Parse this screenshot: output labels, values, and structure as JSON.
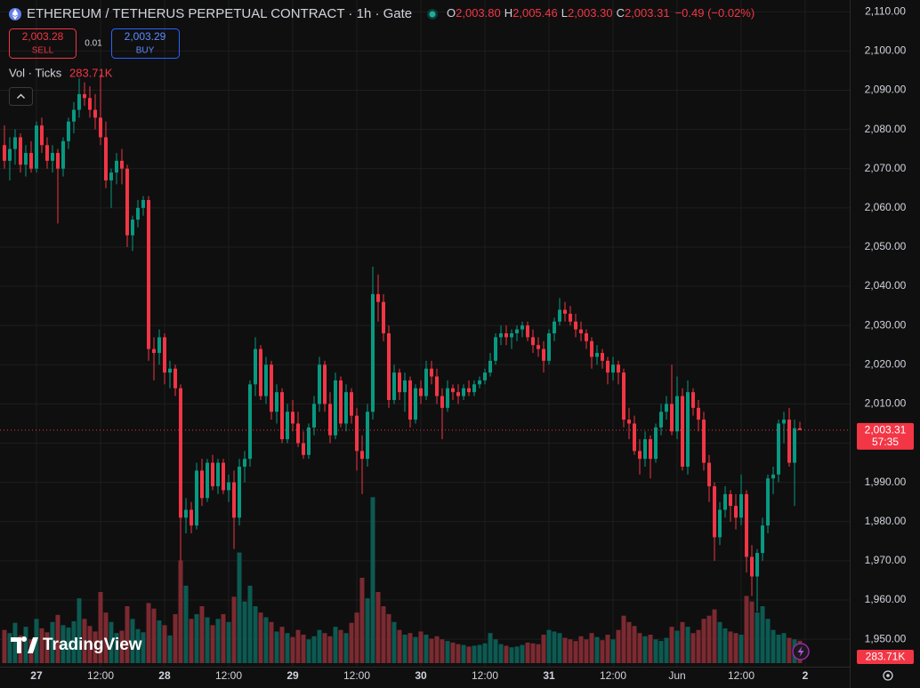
{
  "chart_data": {
    "type": "candlestick",
    "title": "ETHEREUM / TETHERUS PERPETUAL CONTRACT · 1h · Gate",
    "header_ohlc_keys": [
      "O",
      "H",
      "L",
      "C"
    ],
    "header_ohlc_values": [
      "2,003.80",
      "2,005.46",
      "2,003.30",
      "2,003.31"
    ],
    "header_change": "−0.49 (−0.02%)",
    "sell_price": "2,003.28",
    "sell_label": "SELL",
    "spread": "0.01",
    "buy_price": "2,003.29",
    "buy_label": "BUY",
    "volume_title": "Vol · Ticks",
    "volume_last_label": "283.71K",
    "last_price_label": "2,003.31",
    "countdown": "57:35",
    "logo": "TradingView",
    "up_color": "#089981",
    "down_color": "#f23645",
    "up_volume_color": "#0c5a52",
    "down_volume_color": "#7c2a31",
    "grid": true,
    "xlim": [
      -0.83,
      158.33
    ],
    "xticks": [
      {
        "value": 6,
        "label": "27"
      },
      {
        "value": 18,
        "label": "12:00"
      },
      {
        "value": 30,
        "label": "28"
      },
      {
        "value": 42,
        "label": "12:00"
      },
      {
        "value": 54,
        "label": "29"
      },
      {
        "value": 66,
        "label": "12:00"
      },
      {
        "value": 78,
        "label": "30"
      },
      {
        "value": 90,
        "label": "12:00"
      },
      {
        "value": 102,
        "label": "31"
      },
      {
        "value": 114,
        "label": "12:00"
      },
      {
        "value": 126,
        "label": "Jun"
      },
      {
        "value": 138,
        "label": "12:00"
      },
      {
        "value": 150,
        "label": "2"
      }
    ],
    "ylim": [
      1943,
      2113
    ],
    "yticks": [
      {
        "value": 1950,
        "label": "1,950.00"
      },
      {
        "value": 1960,
        "label": "1,960.00"
      },
      {
        "value": 1970,
        "label": "1,970.00"
      },
      {
        "value": 1980,
        "label": "1,980.00"
      },
      {
        "value": 1990,
        "label": "1,990.00"
      },
      {
        "value": 2000,
        "label": "2,000.00"
      },
      {
        "value": 2010,
        "label": "2,010.00"
      },
      {
        "value": 2020,
        "label": "2,020.00"
      },
      {
        "value": 2030,
        "label": "2,030.00"
      },
      {
        "value": 2040,
        "label": "2,040.00"
      },
      {
        "value": 2050,
        "label": "2,050.00"
      },
      {
        "value": 2060,
        "label": "2,060.00"
      },
      {
        "value": 2070,
        "label": "2,070.00"
      },
      {
        "value": 2080,
        "label": "2,080.00"
      },
      {
        "value": 2090,
        "label": "2,090.00"
      },
      {
        "value": 2100,
        "label": "2,100.00"
      },
      {
        "value": 2110,
        "label": "2,110.00"
      }
    ],
    "volume_lim": [
      0,
      2700
    ],
    "x": [
      0,
      1,
      2,
      3,
      4,
      5,
      6,
      7,
      8,
      9,
      10,
      11,
      12,
      13,
      14,
      15,
      16,
      17,
      18,
      19,
      20,
      21,
      22,
      23,
      24,
      25,
      26,
      27,
      28,
      29,
      30,
      31,
      32,
      33,
      34,
      35,
      36,
      37,
      38,
      39,
      40,
      41,
      42,
      43,
      44,
      45,
      46,
      47,
      48,
      49,
      50,
      51,
      52,
      53,
      54,
      55,
      56,
      57,
      58,
      59,
      60,
      61,
      62,
      63,
      64,
      65,
      66,
      67,
      68,
      69,
      70,
      71,
      72,
      73,
      74,
      75,
      76,
      77,
      78,
      79,
      80,
      81,
      82,
      83,
      84,
      85,
      86,
      87,
      88,
      89,
      90,
      91,
      92,
      93,
      94,
      95,
      96,
      97,
      98,
      99,
      100,
      101,
      102,
      103,
      104,
      105,
      106,
      107,
      108,
      109,
      110,
      111,
      112,
      113,
      114,
      115,
      116,
      117,
      118,
      119,
      120,
      121,
      122,
      123,
      124,
      125,
      126,
      127,
      128,
      129,
      130,
      131,
      132,
      133,
      134,
      135,
      136,
      137,
      138,
      139,
      140,
      141,
      142,
      143,
      144,
      145,
      146,
      147,
      148,
      149
    ],
    "ohlc": [
      [
        2076,
        2081,
        2070,
        2072
      ],
      [
        2072,
        2078,
        2067,
        2075
      ],
      [
        2075,
        2080,
        2071,
        2078
      ],
      [
        2078,
        2079,
        2069,
        2071
      ],
      [
        2071,
        2076,
        2068,
        2074
      ],
      [
        2074,
        2077,
        2069,
        2070
      ],
      [
        2070,
        2082,
        2069,
        2081
      ],
      [
        2081,
        2083,
        2074,
        2076
      ],
      [
        2076,
        2078,
        2070,
        2072
      ],
      [
        2072,
        2076,
        2069,
        2074
      ],
      [
        2074,
        2075,
        2056,
        2070
      ],
      [
        2070,
        2078,
        2068,
        2077
      ],
      [
        2077,
        2083,
        2075,
        2082
      ],
      [
        2082,
        2087,
        2079,
        2085
      ],
      [
        2085,
        2093,
        2083,
        2089
      ],
      [
        2089,
        2092,
        2086,
        2088
      ],
      [
        2088,
        2091,
        2083,
        2085
      ],
      [
        2085,
        2089,
        2080,
        2083
      ],
      [
        2083,
        2094,
        2076,
        2078
      ],
      [
        2078,
        2082,
        2065,
        2067
      ],
      [
        2067,
        2070,
        2060,
        2069
      ],
      [
        2069,
        2074,
        2066,
        2072
      ],
      [
        2072,
        2075,
        2066,
        2070
      ],
      [
        2070,
        2071,
        2050,
        2053
      ],
      [
        2053,
        2058,
        2049,
        2057
      ],
      [
        2057,
        2062,
        2055,
        2060
      ],
      [
        2060,
        2063,
        2058,
        2062
      ],
      [
        2062,
        2063,
        2021,
        2024
      ],
      [
        2024,
        2027,
        2016,
        2023
      ],
      [
        2023,
        2029,
        2020,
        2027
      ],
      [
        2027,
        2028,
        2015,
        2018
      ],
      [
        2018,
        2021,
        2014,
        2019
      ],
      [
        2019,
        2020,
        2012,
        2014
      ],
      [
        2014,
        2015,
        1970,
        1981
      ],
      [
        1981,
        1986,
        1977,
        1983
      ],
      [
        1983,
        1985,
        1977,
        1979
      ],
      [
        1979,
        1995,
        1978,
        1993
      ],
      [
        1993,
        1996,
        1984,
        1986
      ],
      [
        1986,
        1996,
        1985,
        1995
      ],
      [
        1995,
        1997,
        1988,
        1989
      ],
      [
        1989,
        1996,
        1987,
        1995
      ],
      [
        1995,
        1996,
        1987,
        1988
      ],
      [
        1988,
        1992,
        1985,
        1990
      ],
      [
        1990,
        1993,
        1973,
        1981
      ],
      [
        1981,
        1996,
        1979,
        1994
      ],
      [
        1994,
        1998,
        1990,
        1996
      ],
      [
        1996,
        2016,
        1994,
        2015
      ],
      [
        2015,
        2027,
        2012,
        2024
      ],
      [
        2024,
        2025,
        2011,
        2012
      ],
      [
        2012,
        2022,
        2010,
        2020
      ],
      [
        2020,
        2021,
        2006,
        2008
      ],
      [
        2008,
        2015,
        2005,
        2013
      ],
      [
        2013,
        2014,
        2000,
        2001
      ],
      [
        2001,
        2010,
        2000,
        2008
      ],
      [
        2008,
        2011,
        2003,
        2005
      ],
      [
        2005,
        2008,
        1999,
        2000
      ],
      [
        2000,
        2003,
        1996,
        1997
      ],
      [
        1997,
        2005,
        1996,
        2004
      ],
      [
        2004,
        2012,
        2002,
        2010
      ],
      [
        2010,
        2022,
        2008,
        2020
      ],
      [
        2020,
        2021,
        2008,
        2010
      ],
      [
        2010,
        2013,
        2000,
        2002
      ],
      [
        2002,
        2018,
        2001,
        2016
      ],
      [
        2016,
        2017,
        2004,
        2005
      ],
      [
        2005,
        2015,
        2003,
        2013
      ],
      [
        2013,
        2014,
        2005,
        2007
      ],
      [
        2007,
        2009,
        1993,
        1998
      ],
      [
        1998,
        2002,
        1987,
        1996
      ],
      [
        1996,
        2010,
        1994,
        2008
      ],
      [
        2008,
        2045,
        2006,
        2038
      ],
      [
        2038,
        2043,
        2031,
        2036
      ],
      [
        2036,
        2038,
        2026,
        2028
      ],
      [
        2028,
        2030,
        2009,
        2011
      ],
      [
        2011,
        2020,
        2010,
        2018
      ],
      [
        2018,
        2019,
        2011,
        2013
      ],
      [
        2013,
        2018,
        2008,
        2016
      ],
      [
        2016,
        2017,
        2004,
        2006
      ],
      [
        2006,
        2015,
        2005,
        2014
      ],
      [
        2014,
        2016,
        2010,
        2012
      ],
      [
        2012,
        2021,
        2011,
        2019
      ],
      [
        2019,
        2021,
        2015,
        2017
      ],
      [
        2017,
        2019,
        2010,
        2012
      ],
      [
        2012,
        2014,
        2001,
        2009
      ],
      [
        2009,
        2016,
        2008,
        2014
      ],
      [
        2014,
        2015,
        2011,
        2013
      ],
      [
        2013,
        2015,
        2010,
        2012
      ],
      [
        2012,
        2015,
        2011,
        2014
      ],
      [
        2014,
        2016,
        2012,
        2013
      ],
      [
        2013,
        2016,
        2012,
        2015
      ],
      [
        2015,
        2017,
        2014,
        2016
      ],
      [
        2016,
        2019,
        2015,
        2018
      ],
      [
        2018,
        2023,
        2017,
        2021
      ],
      [
        2021,
        2028,
        2020,
        2027
      ],
      [
        2027,
        2030,
        2025,
        2028
      ],
      [
        2028,
        2030,
        2025,
        2027
      ],
      [
        2027,
        2029,
        2024,
        2028
      ],
      [
        2028,
        2030,
        2026,
        2029
      ],
      [
        2029,
        2031,
        2027,
        2030
      ],
      [
        2030,
        2031,
        2026,
        2027
      ],
      [
        2027,
        2029,
        2023,
        2025
      ],
      [
        2025,
        2027,
        2022,
        2024
      ],
      [
        2024,
        2026,
        2018,
        2021
      ],
      [
        2021,
        2029,
        2020,
        2028
      ],
      [
        2028,
        2032,
        2026,
        2031
      ],
      [
        2031,
        2037,
        2030,
        2034
      ],
      [
        2034,
        2036,
        2031,
        2033
      ],
      [
        2033,
        2035,
        2030,
        2031
      ],
      [
        2031,
        2033,
        2027,
        2029
      ],
      [
        2029,
        2031,
        2026,
        2028
      ],
      [
        2028,
        2029,
        2024,
        2026
      ],
      [
        2026,
        2027,
        2019,
        2022
      ],
      [
        2022,
        2025,
        2020,
        2023
      ],
      [
        2023,
        2024,
        2019,
        2021
      ],
      [
        2021,
        2022,
        2015,
        2018
      ],
      [
        2018,
        2022,
        2016,
        2020
      ],
      [
        2020,
        2021,
        2015,
        2018
      ],
      [
        2018,
        2019,
        2004,
        2006
      ],
      [
        2006,
        2009,
        2001,
        2005
      ],
      [
        2005,
        2007,
        1997,
        1998
      ],
      [
        1998,
        2001,
        1992,
        1996
      ],
      [
        1996,
        2003,
        1994,
        2001
      ],
      [
        2001,
        2002,
        1991,
        1996
      ],
      [
        1996,
        2005,
        1995,
        2004
      ],
      [
        2004,
        2010,
        2002,
        2008
      ],
      [
        2008,
        2012,
        2006,
        2010
      ],
      [
        2010,
        2020,
        2002,
        2003
      ],
      [
        2003,
        2017,
        2001,
        2012
      ],
      [
        2012,
        2014,
        1993,
        1994
      ],
      [
        1994,
        2016,
        1992,
        2013
      ],
      [
        2013,
        2014,
        2007,
        2009
      ],
      [
        2009,
        2011,
        2003,
        2006
      ],
      [
        2006,
        2008,
        1993,
        1995
      ],
      [
        1995,
        1997,
        1985,
        1989
      ],
      [
        1989,
        1990,
        1970,
        1976
      ],
      [
        1976,
        1985,
        1974,
        1983
      ],
      [
        1983,
        1989,
        1981,
        1987
      ],
      [
        1987,
        1988,
        1980,
        1984
      ],
      [
        1984,
        1987,
        1978,
        1981
      ],
      [
        1981,
        1992,
        1979,
        1987
      ],
      [
        1987,
        1988,
        1967,
        1971
      ],
      [
        1971,
        1974,
        1961,
        1966
      ],
      [
        1966,
        1973,
        1957,
        1972
      ],
      [
        1972,
        1981,
        1970,
        1979
      ],
      [
        1979,
        1992,
        1977,
        1991
      ],
      [
        1991,
        1994,
        1987,
        1992
      ],
      [
        1992,
        2006,
        1990,
        2005
      ],
      [
        2005,
        2008,
        2000,
        2006
      ],
      [
        2006,
        2009,
        1994,
        1995
      ],
      [
        1995,
        2006,
        1984,
        2003.8
      ],
      [
        2003.8,
        2005.46,
        2003.3,
        2003.31
      ]
    ],
    "volume": [
      420,
      380,
      510,
      350,
      460,
      300,
      560,
      440,
      390,
      520,
      610,
      480,
      450,
      530,
      820,
      560,
      470,
      400,
      900,
      640,
      520,
      380,
      410,
      720,
      560,
      430,
      390,
      760,
      690,
      540,
      480,
      350,
      620,
      1300,
      980,
      560,
      620,
      720,
      580,
      480,
      560,
      620,
      520,
      840,
      1400,
      780,
      980,
      720,
      640,
      580,
      520,
      400,
      460,
      380,
      330,
      420,
      360,
      300,
      340,
      420,
      380,
      340,
      460,
      420,
      380,
      510,
      640,
      1080,
      820,
      2100,
      900,
      720,
      620,
      520,
      420,
      360,
      380,
      330,
      400,
      360,
      310,
      340,
      300,
      280,
      260,
      240,
      230,
      210,
      220,
      230,
      250,
      380,
      300,
      240,
      220,
      200,
      210,
      230,
      260,
      250,
      240,
      360,
      420,
      400,
      380,
      320,
      300,
      280,
      340,
      300,
      380,
      330,
      290,
      360,
      300,
      420,
      600,
      520,
      470,
      380,
      340,
      360,
      300,
      280,
      320,
      460,
      410,
      520,
      460,
      380,
      420,
      560,
      600,
      680,
      520,
      440,
      400,
      380,
      360,
      850,
      780,
      640,
      720,
      560,
      420,
      360,
      380,
      320,
      300,
      283.71
    ]
  }
}
